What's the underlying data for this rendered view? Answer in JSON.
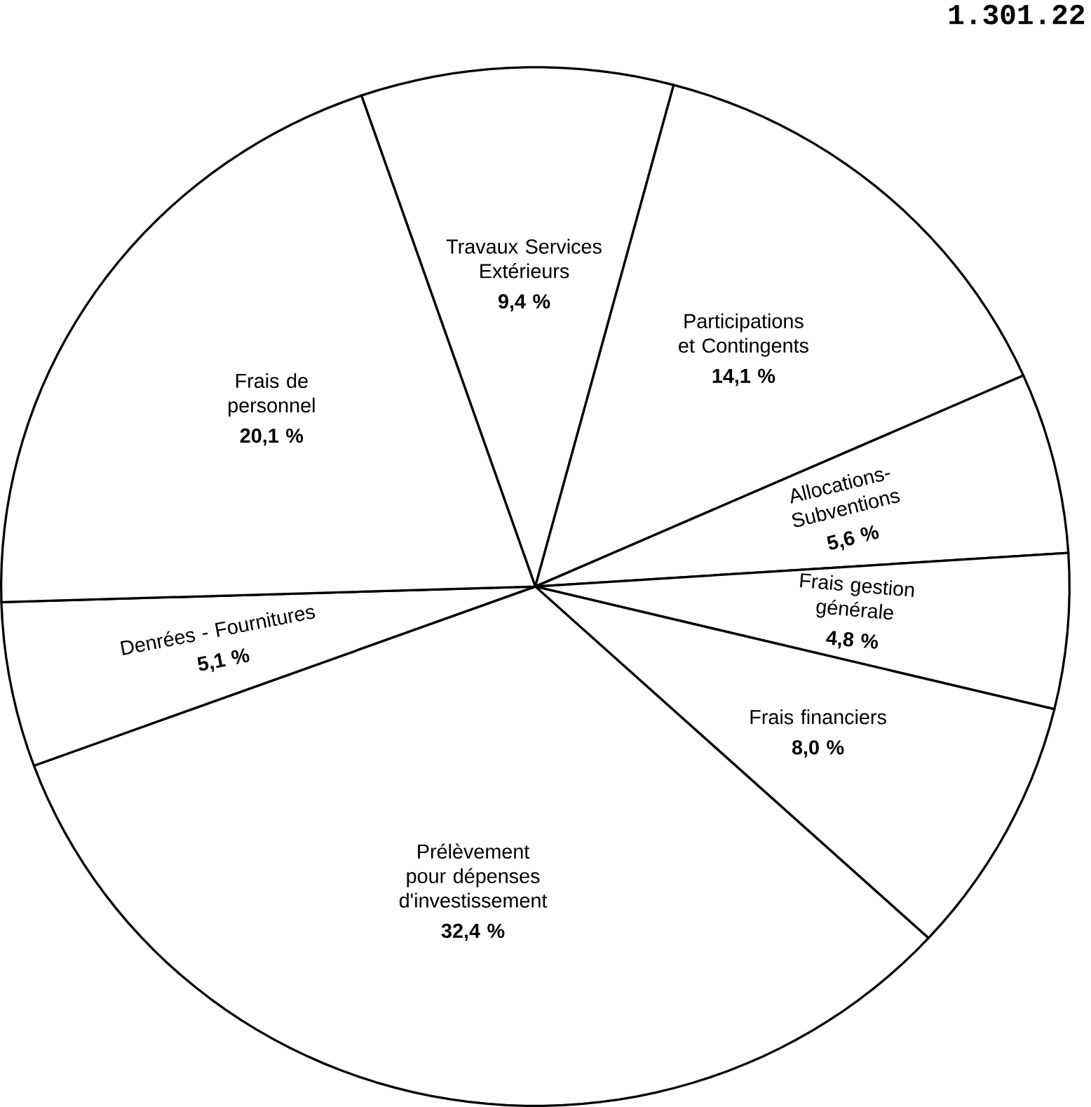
{
  "chart_data": {
    "type": "pie",
    "title": "1.301.22",
    "categories": [
      "Travaux Services Extérieurs",
      "Participations et Contingents",
      "Allocations-Subventions",
      "Frais gestion générale",
      "Frais financiers",
      "Prélèvement pour dépenses d'investissement",
      "Denrées - Fournitures",
      "Frais de personnel"
    ],
    "values": [
      9.4,
      14.1,
      5.6,
      4.8,
      8.0,
      32.4,
      5.1,
      20.1
    ],
    "value_labels": [
      "9,4 %",
      "14,1 %",
      "5,6 %",
      "4,8 %",
      "8,0 %",
      "32,4 %",
      "5,1 %",
      "20,1 %"
    ],
    "colors": [
      "#ffffff",
      "#ffffff",
      "#ffffff",
      "#ffffff",
      "#ffffff",
      "#ffffff",
      "#ffffff",
      "#ffffff"
    ]
  }
}
